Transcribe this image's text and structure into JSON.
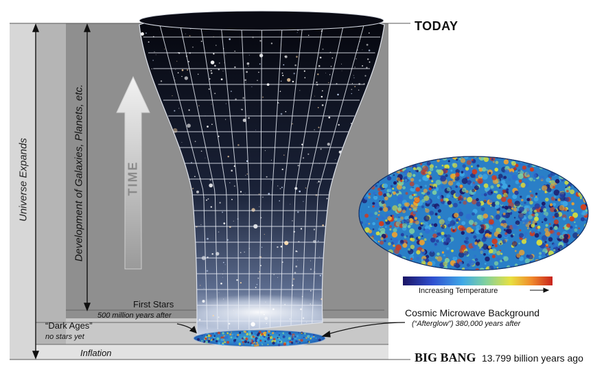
{
  "labels": {
    "today": "TODAY",
    "big_bang": "BIG BANG",
    "big_bang_age": "13.799 billion years ago",
    "universe_expands": "Universe Expands",
    "development": "Development of Galaxies, Planets, etc.",
    "time": "TIME",
    "first_stars": "First Stars",
    "first_stars_time": "500 million years after",
    "dark_ages": "“Dark Ages”",
    "dark_ages_note": "no stars yet",
    "inflation": "Inflation",
    "cmb": "Cosmic Microwave Background",
    "cmb_note": "(“Afterglow”) 380,000 years after",
    "temperature_scale": "Increasing Temperature"
  },
  "colors": {
    "band_outer": "#d7d7d7",
    "band_inner": "#b5b5b5",
    "band_core": "#8f8f8f",
    "space": "#0b0d19",
    "grid": "#e8ecf5",
    "temperature_gradient": [
      "#1b1464",
      "#2f4fd0",
      "#3fa9e6",
      "#7fd0a0",
      "#e8e040",
      "#f08a2c",
      "#c8231c"
    ]
  }
}
